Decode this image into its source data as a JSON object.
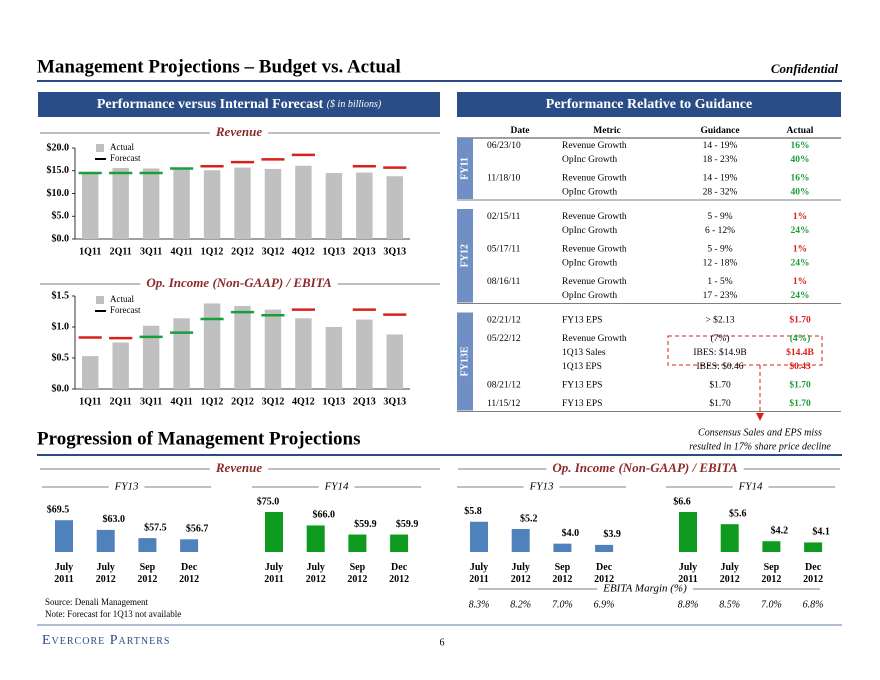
{
  "header": {
    "title": "Management Projections – Budget vs. Actual",
    "confidential": "Confidential"
  },
  "left_panel": {
    "title": "Performance versus Internal Forecast",
    "subtitle": "($ in billions)"
  },
  "chart_data": [
    {
      "type": "combo",
      "title": "Revenue",
      "categories": [
        "1Q11",
        "2Q11",
        "3Q11",
        "4Q11",
        "1Q12",
        "2Q12",
        "3Q12",
        "4Q12",
        "1Q13",
        "2Q13",
        "3Q13"
      ],
      "series": [
        {
          "name": "Actual",
          "color": "#c0c0c0",
          "values": [
            14.7,
            15.6,
            15.5,
            15.7,
            15.1,
            15.7,
            15.4,
            16.1,
            14.5,
            14.6,
            13.8
          ]
        },
        {
          "name": "Forecast",
          "color": "#000000",
          "values": [
            14.5,
            14.5,
            14.5,
            15.5,
            16.0,
            16.9,
            17.5,
            18.5,
            null,
            16.0,
            15.7
          ],
          "colors": [
            "#1a9e3a",
            "#1a9e3a",
            "#1a9e3a",
            "#1a9e3a",
            "#d9211c",
            "#d9211c",
            "#d9211c",
            "#d9211c",
            null,
            "#d9211c",
            "#d9211c"
          ]
        }
      ],
      "ylim": [
        0,
        20
      ],
      "yticks": [
        {
          "value": 0,
          "label": "$0.0"
        },
        {
          "value": 5,
          "label": "$5.0"
        },
        {
          "value": 10,
          "label": "$10.0"
        },
        {
          "value": 15,
          "label": "$15.0"
        },
        {
          "value": 20,
          "label": "$20.0"
        }
      ]
    },
    {
      "type": "combo",
      "title": "Op. Income (Non-GAAP) / EBITA",
      "categories": [
        "1Q11",
        "2Q11",
        "3Q11",
        "4Q11",
        "1Q12",
        "2Q12",
        "3Q12",
        "4Q12",
        "1Q13",
        "2Q13",
        "3Q13"
      ],
      "series": [
        {
          "name": "Actual",
          "color": "#c0c0c0",
          "values": [
            0.53,
            0.75,
            1.02,
            1.14,
            1.38,
            1.34,
            1.28,
            1.14,
            1.0,
            1.12,
            0.88
          ]
        },
        {
          "name": "Forecast",
          "color": "#000000",
          "values": [
            0.83,
            0.82,
            0.84,
            0.91,
            1.13,
            1.24,
            1.19,
            1.28,
            null,
            1.28,
            1.2
          ],
          "colors": [
            "#d9211c",
            "#d9211c",
            "#1a9e3a",
            "#1a9e3a",
            "#1a9e3a",
            "#1a9e3a",
            "#1a9e3a",
            "#d9211c",
            null,
            "#d9211c",
            "#d9211c"
          ]
        }
      ],
      "ylim": [
        0,
        1.5
      ],
      "yticks": [
        {
          "value": 0,
          "label": "$0.0"
        },
        {
          "value": 0.5,
          "label": "$0.5"
        },
        {
          "value": 1.0,
          "label": "$1.0"
        },
        {
          "value": 1.5,
          "label": "$1.5"
        }
      ]
    },
    {
      "type": "bar",
      "title": "Revenue",
      "series": [
        {
          "name": "FY13",
          "color": "#4f81bd",
          "categories": [
            [
              "July",
              "2011"
            ],
            [
              "July",
              "2012"
            ],
            [
              "Sep",
              "2012"
            ],
            [
              "Dec",
              "2012"
            ]
          ],
          "values": [
            69.5,
            63.0,
            57.5,
            56.7
          ],
          "value_labels": [
            "$69.5",
            "$63.0",
            "$57.5",
            "$56.7"
          ]
        },
        {
          "name": "FY14",
          "color": "#0e9a1e",
          "categories": [
            [
              "July",
              "2011"
            ],
            [
              "July",
              "2012"
            ],
            [
              "Sep",
              "2012"
            ],
            [
              "Dec",
              "2012"
            ]
          ],
          "values": [
            75.0,
            66.0,
            59.9,
            59.9
          ],
          "value_labels": [
            "$75.0",
            "$66.0",
            "$59.9",
            "$59.9"
          ]
        }
      ]
    },
    {
      "type": "bar",
      "title": "Op. Income (Non-GAAP) / EBITA",
      "series": [
        {
          "name": "FY13",
          "color": "#4f81bd",
          "categories": [
            [
              "July",
              "2011"
            ],
            [
              "July",
              "2012"
            ],
            [
              "Sep",
              "2012"
            ],
            [
              "Dec",
              "2012"
            ]
          ],
          "values": [
            5.8,
            5.2,
            4.0,
            3.9
          ],
          "value_labels": [
            "$5.8",
            "$5.2",
            "$4.0",
            "$3.9"
          ],
          "margins": [
            8.3,
            8.2,
            7.0,
            6.9
          ],
          "margin_labels": [
            "8.3%",
            "8.2%",
            "7.0%",
            "6.9%"
          ]
        },
        {
          "name": "FY14",
          "color": "#0e9a1e",
          "categories": [
            [
              "July",
              "2011"
            ],
            [
              "July",
              "2012"
            ],
            [
              "Sep",
              "2012"
            ],
            [
              "Dec",
              "2012"
            ]
          ],
          "values": [
            6.6,
            5.6,
            4.2,
            4.1
          ],
          "value_labels": [
            "$6.6",
            "$5.6",
            "$4.2",
            "$4.1"
          ],
          "margins": [
            8.8,
            8.5,
            7.0,
            6.8
          ],
          "margin_labels": [
            "8.8%",
            "8.5%",
            "7.0%",
            "6.8%"
          ]
        }
      ],
      "margin_title": "EBITA Margin (%)"
    }
  ],
  "guidance": {
    "title": "Performance Relative to Guidance",
    "columns": [
      "Date",
      "Metric",
      "Guidance",
      "Actual"
    ],
    "groups": [
      {
        "label": "FY11",
        "rows": [
          {
            "date": "06/23/10",
            "items": [
              {
                "metric": "Revenue Growth",
                "guidance": "14 - 19%",
                "actual": "16%",
                "color": "#1a9e3a"
              },
              {
                "metric": "OpInc Growth",
                "guidance": "18 - 23%",
                "actual": "40%",
                "color": "#1a9e3a"
              }
            ]
          },
          {
            "date": "11/18/10",
            "items": [
              {
                "metric": "Revenue Growth",
                "guidance": "14 - 19%",
                "actual": "16%",
                "color": "#1a9e3a"
              },
              {
                "metric": "OpInc Growth",
                "guidance": "28 - 32%",
                "actual": "40%",
                "color": "#1a9e3a"
              }
            ]
          }
        ]
      },
      {
        "label": "FY12",
        "rows": [
          {
            "date": "02/15/11",
            "items": [
              {
                "metric": "Revenue Growth",
                "guidance": "5 - 9%",
                "actual": "1%",
                "color": "#d9211c"
              },
              {
                "metric": "OpInc Growth",
                "guidance": "6 - 12%",
                "actual": "24%",
                "color": "#1a9e3a"
              }
            ]
          },
          {
            "date": "05/17/11",
            "items": [
              {
                "metric": "Revenue Growth",
                "guidance": "5 - 9%",
                "actual": "1%",
                "color": "#d9211c"
              },
              {
                "metric": "OpInc Growth",
                "guidance": "12 - 18%",
                "actual": "24%",
                "color": "#1a9e3a"
              }
            ]
          },
          {
            "date": "08/16/11",
            "items": [
              {
                "metric": "Revenue Growth",
                "guidance": "1 - 5%",
                "actual": "1%",
                "color": "#d9211c"
              },
              {
                "metric": "OpInc Growth",
                "guidance": "17 - 23%",
                "actual": "24%",
                "color": "#1a9e3a"
              }
            ]
          }
        ]
      },
      {
        "label": "FY13E",
        "rows": [
          {
            "date": "02/21/12",
            "items": [
              {
                "metric": "FY13 EPS",
                "guidance": "> $2.13",
                "actual": "$1.70",
                "color": "#d9211c"
              }
            ]
          },
          {
            "date": "05/22/12",
            "items": [
              {
                "metric": "Revenue Growth",
                "guidance": "(7%)",
                "actual": "(4%)",
                "color": "#1a9e3a"
              },
              {
                "metric": "1Q13 Sales",
                "guidance": "IBES: $14.9B",
                "actual": "$14.4B",
                "color": "#d9211c"
              },
              {
                "metric": "1Q13 EPS",
                "guidance": "IBES: $0.46",
                "actual": "$0.43",
                "color": "#d9211c"
              }
            ]
          },
          {
            "date": "08/21/12",
            "items": [
              {
                "metric": "FY13 EPS",
                "guidance": "$1.70",
                "actual": "$1.70",
                "color": "#1a9e3a"
              }
            ]
          },
          {
            "date": "11/15/12",
            "items": [
              {
                "metric": "FY13 EPS",
                "guidance": "$1.70",
                "actual": "$1.70",
                "color": "#1a9e3a"
              }
            ]
          }
        ]
      }
    ]
  },
  "callout": [
    "Consensus Sales and EPS miss",
    "resulted in 17% share price decline"
  ],
  "progression_title": "Progression of Management Projections",
  "source": "Source: Denali Management",
  "note": "Note: Forecast for 1Q13 not available",
  "footer": {
    "logo": "Evercore Partners",
    "page": "6"
  }
}
